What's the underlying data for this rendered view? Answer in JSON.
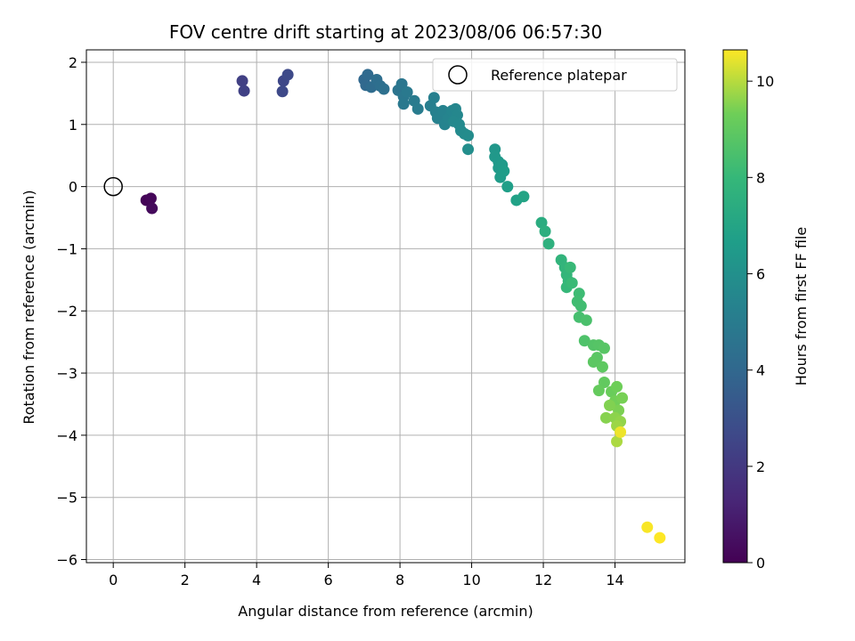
{
  "chart_data": {
    "type": "scatter",
    "title": "FOV centre drift starting at 2023/08/06 06:57:30",
    "xlabel": "Angular distance from reference (arcmin)",
    "ylabel": "Rotation from reference (arcmin)",
    "xlim": [
      -0.75,
      15.95
    ],
    "ylim": [
      -6.05,
      2.2
    ],
    "xticks": [
      0,
      2,
      4,
      6,
      8,
      10,
      12,
      14
    ],
    "xtick_labels": [
      "0",
      "2",
      "4",
      "6",
      "8",
      "10",
      "12",
      "14"
    ],
    "yticks": [
      2,
      1,
      0,
      -1,
      -2,
      -3,
      -4,
      -5,
      -6
    ],
    "ytick_labels": [
      "2",
      "1",
      "0",
      "−1",
      "−2",
      "−3",
      "−4",
      "−5",
      "−6"
    ],
    "grid": true,
    "legend": {
      "position": "top-right",
      "entries": [
        "Reference platepar"
      ]
    },
    "reference_marker": {
      "x": 0,
      "y": 0,
      "label": "Reference platepar"
    },
    "colorbar": {
      "label": "Hours from first FF file",
      "range": [
        0,
        10.65
      ],
      "ticks": [
        0,
        2,
        4,
        6,
        8,
        10
      ],
      "tick_labels": [
        "0",
        "2",
        "4",
        "6",
        "8",
        "10"
      ],
      "colormap": "viridis"
    },
    "points": [
      {
        "x": 0.92,
        "y": -0.22,
        "c": 0.1
      },
      {
        "x": 1.05,
        "y": -0.19,
        "c": 0.2
      },
      {
        "x": 1.08,
        "y": -0.35,
        "c": 0.3
      },
      {
        "x": 3.6,
        "y": 1.7,
        "c": 2.3
      },
      {
        "x": 3.65,
        "y": 1.54,
        "c": 2.35
      },
      {
        "x": 4.75,
        "y": 1.7,
        "c": 2.6
      },
      {
        "x": 4.72,
        "y": 1.53,
        "c": 2.65
      },
      {
        "x": 4.87,
        "y": 1.8,
        "c": 2.7
      },
      {
        "x": 7.0,
        "y": 1.72,
        "c": 4.0
      },
      {
        "x": 7.05,
        "y": 1.63,
        "c": 4.05
      },
      {
        "x": 7.1,
        "y": 1.8,
        "c": 4.1
      },
      {
        "x": 7.2,
        "y": 1.6,
        "c": 4.2
      },
      {
        "x": 7.35,
        "y": 1.72,
        "c": 4.3
      },
      {
        "x": 7.45,
        "y": 1.62,
        "c": 4.35
      },
      {
        "x": 7.55,
        "y": 1.57,
        "c": 4.4
      },
      {
        "x": 7.95,
        "y": 1.55,
        "c": 4.6
      },
      {
        "x": 8.05,
        "y": 1.65,
        "c": 4.7
      },
      {
        "x": 8.1,
        "y": 1.45,
        "c": 4.75
      },
      {
        "x": 8.1,
        "y": 1.33,
        "c": 4.8
      },
      {
        "x": 8.2,
        "y": 1.52,
        "c": 4.85
      },
      {
        "x": 8.4,
        "y": 1.38,
        "c": 4.95
      },
      {
        "x": 8.5,
        "y": 1.25,
        "c": 5.0
      },
      {
        "x": 8.85,
        "y": 1.3,
        "c": 5.1
      },
      {
        "x": 8.95,
        "y": 1.43,
        "c": 5.15
      },
      {
        "x": 9.0,
        "y": 1.2,
        "c": 5.2
      },
      {
        "x": 9.05,
        "y": 1.1,
        "c": 5.25
      },
      {
        "x": 9.2,
        "y": 1.22,
        "c": 5.3
      },
      {
        "x": 9.25,
        "y": 1.0,
        "c": 5.35
      },
      {
        "x": 9.35,
        "y": 1.1,
        "c": 5.4
      },
      {
        "x": 9.45,
        "y": 1.22,
        "c": 5.45
      },
      {
        "x": 9.55,
        "y": 1.25,
        "c": 5.5
      },
      {
        "x": 9.6,
        "y": 1.15,
        "c": 5.55
      },
      {
        "x": 9.5,
        "y": 1.05,
        "c": 5.6
      },
      {
        "x": 9.65,
        "y": 1.0,
        "c": 5.65
      },
      {
        "x": 9.7,
        "y": 0.9,
        "c": 5.7
      },
      {
        "x": 9.8,
        "y": 0.85,
        "c": 5.75
      },
      {
        "x": 9.9,
        "y": 0.82,
        "c": 5.8
      },
      {
        "x": 9.9,
        "y": 0.6,
        "c": 5.9
      },
      {
        "x": 10.65,
        "y": 0.6,
        "c": 6.3
      },
      {
        "x": 10.65,
        "y": 0.48,
        "c": 6.35
      },
      {
        "x": 10.75,
        "y": 0.4,
        "c": 6.4
      },
      {
        "x": 10.75,
        "y": 0.3,
        "c": 6.45
      },
      {
        "x": 10.85,
        "y": 0.35,
        "c": 6.5
      },
      {
        "x": 10.8,
        "y": 0.15,
        "c": 6.55
      },
      {
        "x": 10.9,
        "y": 0.25,
        "c": 6.6
      },
      {
        "x": 11.0,
        "y": 0.0,
        "c": 6.7
      },
      {
        "x": 11.25,
        "y": -0.22,
        "c": 6.85
      },
      {
        "x": 11.45,
        "y": -0.16,
        "c": 6.95
      },
      {
        "x": 11.95,
        "y": -0.58,
        "c": 7.4
      },
      {
        "x": 12.05,
        "y": -0.72,
        "c": 7.5
      },
      {
        "x": 12.15,
        "y": -0.92,
        "c": 7.6
      },
      {
        "x": 12.5,
        "y": -1.18,
        "c": 7.8
      },
      {
        "x": 12.6,
        "y": -1.3,
        "c": 7.85
      },
      {
        "x": 12.65,
        "y": -1.42,
        "c": 7.9
      },
      {
        "x": 12.7,
        "y": -1.52,
        "c": 7.95
      },
      {
        "x": 12.65,
        "y": -1.62,
        "c": 8.0
      },
      {
        "x": 12.75,
        "y": -1.3,
        "c": 8.05
      },
      {
        "x": 12.8,
        "y": -1.55,
        "c": 8.1
      },
      {
        "x": 13.0,
        "y": -1.72,
        "c": 8.2
      },
      {
        "x": 12.95,
        "y": -1.85,
        "c": 8.25
      },
      {
        "x": 13.05,
        "y": -1.92,
        "c": 8.3
      },
      {
        "x": 13.0,
        "y": -2.1,
        "c": 8.4
      },
      {
        "x": 13.2,
        "y": -2.15,
        "c": 8.5
      },
      {
        "x": 13.15,
        "y": -2.48,
        "c": 8.6
      },
      {
        "x": 13.4,
        "y": -2.55,
        "c": 8.7
      },
      {
        "x": 13.55,
        "y": -2.55,
        "c": 8.75
      },
      {
        "x": 13.7,
        "y": -2.6,
        "c": 8.8
      },
      {
        "x": 13.5,
        "y": -2.75,
        "c": 8.85
      },
      {
        "x": 13.4,
        "y": -2.82,
        "c": 8.9
      },
      {
        "x": 13.65,
        "y": -2.9,
        "c": 8.95
      },
      {
        "x": 13.7,
        "y": -3.15,
        "c": 9.05
      },
      {
        "x": 13.55,
        "y": -3.28,
        "c": 9.1
      },
      {
        "x": 13.9,
        "y": -3.3,
        "c": 9.2
      },
      {
        "x": 14.05,
        "y": -3.22,
        "c": 9.3
      },
      {
        "x": 14.0,
        "y": -3.45,
        "c": 9.35
      },
      {
        "x": 14.2,
        "y": -3.4,
        "c": 9.4
      },
      {
        "x": 14.1,
        "y": -3.6,
        "c": 9.45
      },
      {
        "x": 13.85,
        "y": -3.52,
        "c": 9.5
      },
      {
        "x": 13.75,
        "y": -3.72,
        "c": 9.55
      },
      {
        "x": 14.0,
        "y": -3.72,
        "c": 9.6
      },
      {
        "x": 14.15,
        "y": -3.78,
        "c": 9.65
      },
      {
        "x": 14.05,
        "y": -3.85,
        "c": 9.75
      },
      {
        "x": 14.05,
        "y": -4.1,
        "c": 9.9
      },
      {
        "x": 14.15,
        "y": -3.95,
        "c": 10.5
      },
      {
        "x": 14.9,
        "y": -5.48,
        "c": 10.6
      },
      {
        "x": 15.25,
        "y": -5.65,
        "c": 10.65
      }
    ]
  }
}
